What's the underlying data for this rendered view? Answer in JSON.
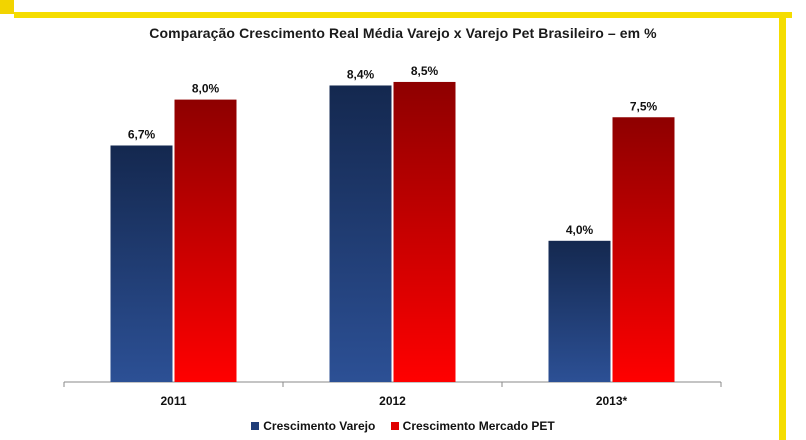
{
  "chart_data": {
    "type": "bar",
    "title": "Comparação Crescimento Real Média Varejo x Varejo Pet Brasileiro  – em %",
    "categories": [
      "2011",
      "2012",
      "2013*"
    ],
    "series": [
      {
        "name": "Crescimento Varejo",
        "values": [
          6.7,
          8.4,
          4.0
        ],
        "labels": [
          "6,7%",
          "8,4%",
          "4,0%"
        ],
        "color": "#1f3d78"
      },
      {
        "name": "Crescimento Mercado PET",
        "values": [
          8.0,
          8.5,
          7.5
        ],
        "labels": [
          "8,0%",
          "8,5%",
          "7,5%"
        ],
        "color": "#e00000"
      }
    ],
    "ylim": [
      0,
      9.2
    ],
    "xlabel": "",
    "ylabel": "",
    "legend_position": "bottom"
  }
}
